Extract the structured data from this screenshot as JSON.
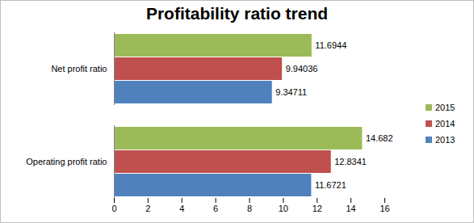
{
  "chart_data": {
    "type": "bar",
    "title": "Profitability ratio trend",
    "orientation": "horizontal",
    "categories": [
      "Net profit ratio",
      "Operating profit ratio"
    ],
    "series": [
      {
        "name": "2013",
        "color": "#4f81bd",
        "values": [
          9.34711,
          11.6721
        ]
      },
      {
        "name": "2014",
        "color": "#c0504d",
        "values": [
          9.94036,
          12.8341
        ]
      },
      {
        "name": "2015",
        "color": "#9bbb59",
        "values": [
          11.6944,
          14.682
        ]
      }
    ],
    "xlim": [
      0,
      16
    ],
    "xticks": [
      0,
      2,
      4,
      6,
      8,
      10,
      12,
      14,
      16
    ],
    "data_labels": true,
    "legend": "right",
    "grid": false
  }
}
